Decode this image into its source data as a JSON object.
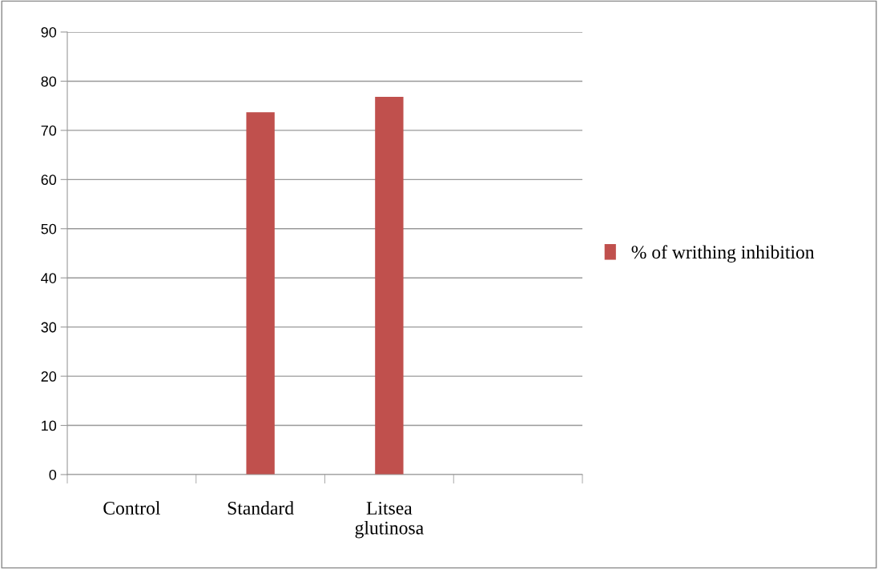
{
  "chart_data": {
    "type": "bar",
    "categories": [
      "Control",
      "Standard",
      "Litsea\nglutinosa",
      null
    ],
    "series": [
      {
        "name": "% of writhing inhibition",
        "color": "#c0504d",
        "values": [
          0,
          73.7,
          76.8,
          null
        ]
      }
    ],
    "ylim": [
      0,
      90
    ],
    "yticks": [
      0,
      10,
      20,
      30,
      40,
      50,
      60,
      70,
      80,
      90
    ],
    "grid": "y",
    "legend": "right"
  }
}
